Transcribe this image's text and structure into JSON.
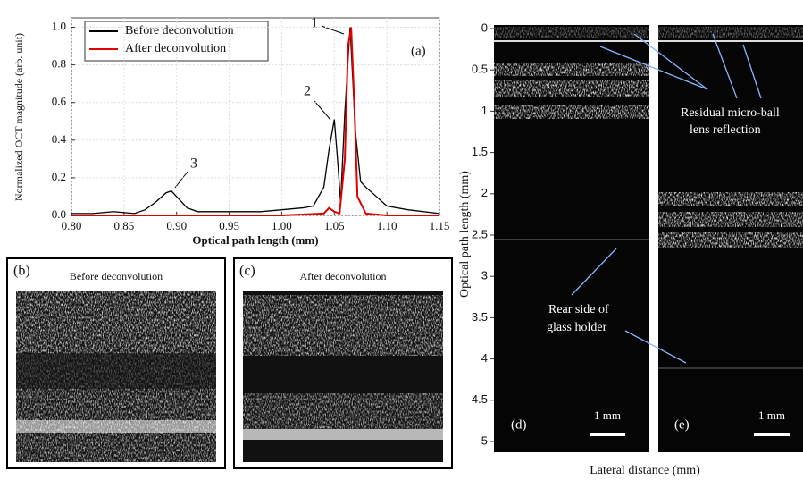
{
  "chart_data": {
    "type": "line",
    "ylabel": "Normalized OCT magnitude (arb. unit)",
    "xlabel": "Optical path length (mm)",
    "xlim": [
      0.8,
      1.15
    ],
    "xticks": [
      {
        "value": 0.8,
        "label": "0.80"
      },
      0.85,
      {
        "value": 0.9,
        "label": "0.90"
      },
      0.95,
      {
        "value": 1.0,
        "label": "1.00"
      },
      1.05,
      {
        "value": 1.1,
        "label": "1.10"
      },
      1.15
    ],
    "ylim": [
      0,
      1.05
    ],
    "yticks": [
      {
        "value": 0,
        "label": "0.0"
      },
      0.2,
      0.4,
      0.6,
      0.8,
      {
        "value": 1.0,
        "label": "1.0"
      }
    ],
    "grid": true,
    "legend": "top-left",
    "series": [
      {
        "name": "Before deconvolution",
        "color": "#000000",
        "x": [
          0.8,
          0.82,
          0.84,
          0.86,
          0.87,
          0.88,
          0.89,
          0.895,
          0.9,
          0.91,
          0.92,
          0.94,
          0.96,
          0.98,
          1.0,
          1.02,
          1.03,
          1.04,
          1.045,
          1.05,
          1.053,
          1.056,
          1.06,
          1.065,
          1.07,
          1.075,
          1.08,
          1.09,
          1.1,
          1.12,
          1.15
        ],
        "values": [
          0.01,
          0.01,
          0.02,
          0.01,
          0.03,
          0.07,
          0.12,
          0.13,
          0.1,
          0.04,
          0.02,
          0.02,
          0.02,
          0.02,
          0.03,
          0.04,
          0.05,
          0.15,
          0.35,
          0.51,
          0.3,
          0.07,
          0.55,
          1.0,
          0.45,
          0.18,
          0.15,
          0.1,
          0.05,
          0.03,
          0.01
        ]
      },
      {
        "name": "After deconvolution",
        "color": "#e00000",
        "x": [
          0.8,
          0.9,
          1.0,
          1.04,
          1.045,
          1.05,
          1.055,
          1.06,
          1.063,
          1.066,
          1.069,
          1.072,
          1.08,
          1.1,
          1.15
        ],
        "values": [
          0.0,
          0.0,
          0.0,
          0.01,
          0.04,
          0.02,
          0.01,
          0.3,
          0.9,
          1.0,
          0.6,
          0.1,
          0.01,
          0.0,
          0.0
        ]
      }
    ],
    "annotations": [
      "1",
      "2",
      "3"
    ],
    "panel_label": "(a)"
  },
  "panels": {
    "b": {
      "label": "(b)",
      "title": "Before deconvolution"
    },
    "c": {
      "label": "(c)",
      "title": "After deconvolution"
    },
    "de": {
      "ylabel": "Optical path length (mm)",
      "xlabel": "Lateral distance (mm)",
      "ylim": [
        0,
        5
      ],
      "yticks": [
        0,
        0.5,
        1,
        1.5,
        2,
        2.5,
        3,
        3.5,
        4,
        4.5,
        5
      ],
      "d_label": "(d)",
      "e_label": "(e)",
      "scale_bar": "1 mm",
      "reflection_note": [
        "Residual micro-ball",
        "lens reflection"
      ],
      "holder_note": [
        "Rear side of",
        "glass holder"
      ]
    }
  }
}
